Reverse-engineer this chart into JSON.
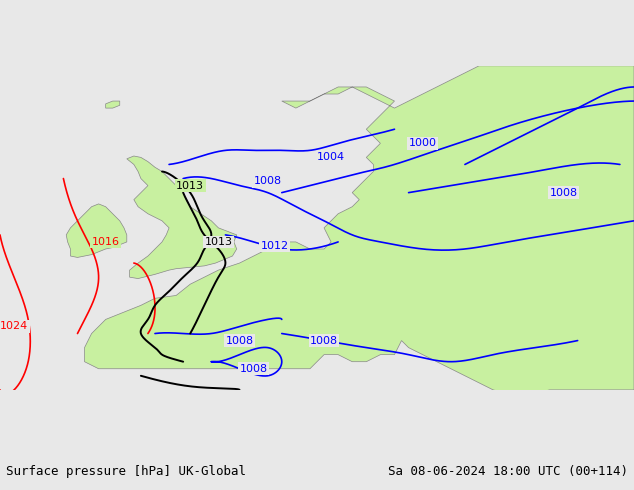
{
  "title_left": "Surface pressure [hPa] UK-Global",
  "title_right": "Sa 08-06-2024 18:00 UTC (00+114)",
  "bg_color": "#e8e8e8",
  "land_color": "#c8f0a0",
  "sea_color": "#e8e8e8",
  "border_color": "#888888",
  "contour_blue_color": "#0000ff",
  "contour_black_color": "#000000",
  "contour_red_color": "#ff0000",
  "label_fontsize": 8,
  "title_fontsize": 9,
  "figsize": [
    6.34,
    4.9
  ],
  "dpi": 100
}
